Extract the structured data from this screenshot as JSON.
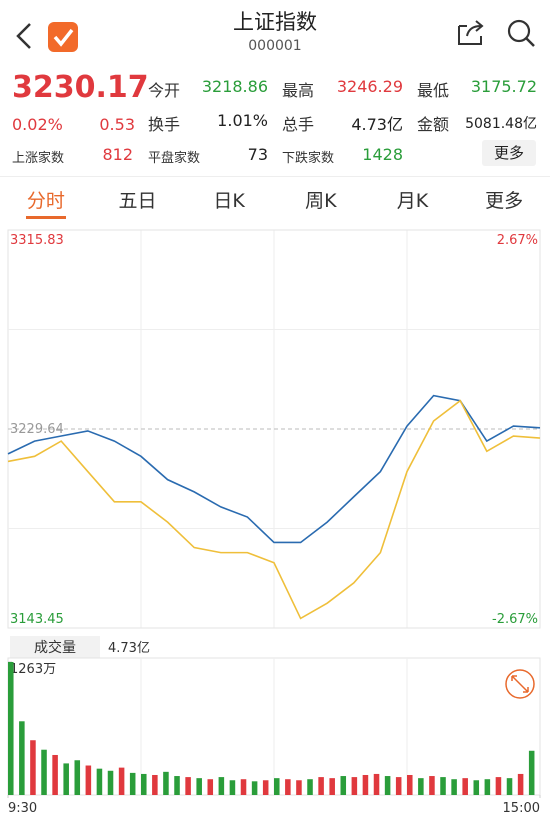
{
  "header": {
    "title": "上证指数",
    "code": "000001"
  },
  "quote": {
    "price": "3230.17",
    "change_pct": "0.02%",
    "change": "0.53",
    "color": "#e0393e",
    "stats": [
      {
        "label": "今开",
        "value": "3218.86",
        "color": "#2a9d3a"
      },
      {
        "label": "最高",
        "value": "3246.29",
        "color": "#e0393e"
      },
      {
        "label": "最低",
        "value": "3175.72",
        "color": "#2a9d3a"
      },
      {
        "label": "换手",
        "value": "1.01%",
        "color": "#222222"
      },
      {
        "label": "总手",
        "value": "4.73亿",
        "color": "#222222"
      },
      {
        "label": "金额",
        "value": "5081.48亿",
        "color": "#222222"
      }
    ],
    "breadth": [
      {
        "label": "上涨家数",
        "value": "812",
        "color": "#e0393e"
      },
      {
        "label": "平盘家数",
        "value": "73",
        "color": "#222222"
      },
      {
        "label": "下跌家数",
        "value": "1428",
        "color": "#2a9d3a"
      }
    ],
    "more_button": "更多"
  },
  "tabs": {
    "items": [
      "分时",
      "五日",
      "日K",
      "周K",
      "月K",
      "更多"
    ],
    "active": 0
  },
  "chart_data": [
    {
      "type": "line",
      "x": [
        0,
        12,
        24,
        36,
        48,
        60,
        72,
        84,
        96,
        108,
        120,
        132,
        144,
        156,
        168,
        180,
        192,
        204,
        216,
        228,
        240
      ],
      "xlim": [
        0,
        240
      ],
      "series": [
        {
          "color": "#2a6bb0",
          "values": [
            3218.86,
            3224.4,
            3226.6,
            3228.8,
            3224.4,
            3217.8,
            3207.7,
            3202.4,
            3195.9,
            3191.5,
            3180.5,
            3180.5,
            3189.3,
            3200.3,
            3211.2,
            3230.9,
            3244.1,
            3241.9,
            3224.4,
            3230.9,
            3230.17
          ]
        },
        {
          "color": "#efbf3a",
          "values": [
            3215.6,
            3217.8,
            3224.4,
            3211.2,
            3198.1,
            3198.1,
            3189.3,
            3178.3,
            3176.1,
            3176.1,
            3171.7,
            3147.6,
            3154.2,
            3163.0,
            3176.1,
            3211.2,
            3233.1,
            3241.9,
            3220.0,
            3226.6,
            3225.7
          ]
        }
      ],
      "ylim": [
        3143.45,
        3315.83
      ],
      "yticks": [
        3143.45,
        3229.64,
        3315.83
      ],
      "y2lim": [
        -2.67,
        2.67
      ],
      "y2ticks": [
        {
          "value": -2.67,
          "label": "-2.67%"
        },
        {
          "value": 2.67,
          "label": "2.67%"
        }
      ],
      "grid": true
    },
    {
      "type": "bar",
      "title": "成交量",
      "annotation": "4.73亿",
      "x": [
        0,
        5,
        10,
        15,
        20,
        25,
        30,
        35,
        40,
        45,
        50,
        55,
        60,
        65,
        70,
        75,
        80,
        85,
        90,
        95,
        100,
        105,
        110,
        115,
        120,
        125,
        130,
        135,
        140,
        145,
        150,
        155,
        160,
        165,
        170,
        175,
        180,
        185,
        190,
        195,
        200,
        205,
        210,
        215,
        220,
        225,
        230,
        235
      ],
      "values": [
        1263,
        700,
        520,
        430,
        380,
        300,
        330,
        280,
        250,
        230,
        260,
        210,
        200,
        190,
        220,
        180,
        170,
        160,
        150,
        170,
        140,
        150,
        130,
        140,
        160,
        150,
        140,
        150,
        170,
        160,
        180,
        170,
        190,
        200,
        180,
        170,
        190,
        160,
        180,
        170,
        150,
        160,
        140,
        150,
        170,
        160,
        200,
        420
      ],
      "colors": [
        "#2a9d3a",
        "#2a9d3a",
        "#e0393e",
        "#2a9d3a",
        "#e0393e",
        "#2a9d3a",
        "#2a9d3a",
        "#e0393e",
        "#2a9d3a",
        "#2a9d3a",
        "#e0393e",
        "#2a9d3a",
        "#2a9d3a",
        "#e0393e",
        "#2a9d3a",
        "#2a9d3a",
        "#e0393e",
        "#2a9d3a",
        "#e0393e",
        "#2a9d3a",
        "#2a9d3a",
        "#e0393e",
        "#2a9d3a",
        "#e0393e",
        "#2a9d3a",
        "#e0393e",
        "#e0393e",
        "#2a9d3a",
        "#e0393e",
        "#e0393e",
        "#2a9d3a",
        "#e0393e",
        "#e0393e",
        "#e0393e",
        "#2a9d3a",
        "#e0393e",
        "#e0393e",
        "#2a9d3a",
        "#e0393e",
        "#2a9d3a",
        "#2a9d3a",
        "#e0393e",
        "#2a9d3a",
        "#2a9d3a",
        "#e0393e",
        "#2a9d3a",
        "#e0393e",
        "#2a9d3a"
      ],
      "xlim": [
        0,
        240
      ],
      "xticks": [
        {
          "value": 0,
          "label": "9:30"
        },
        {
          "value": 240,
          "label": "15:00"
        }
      ],
      "ylim": [
        0,
        1263
      ],
      "yticks": [
        {
          "value": 1263,
          "label": "1263万"
        }
      ]
    }
  ]
}
